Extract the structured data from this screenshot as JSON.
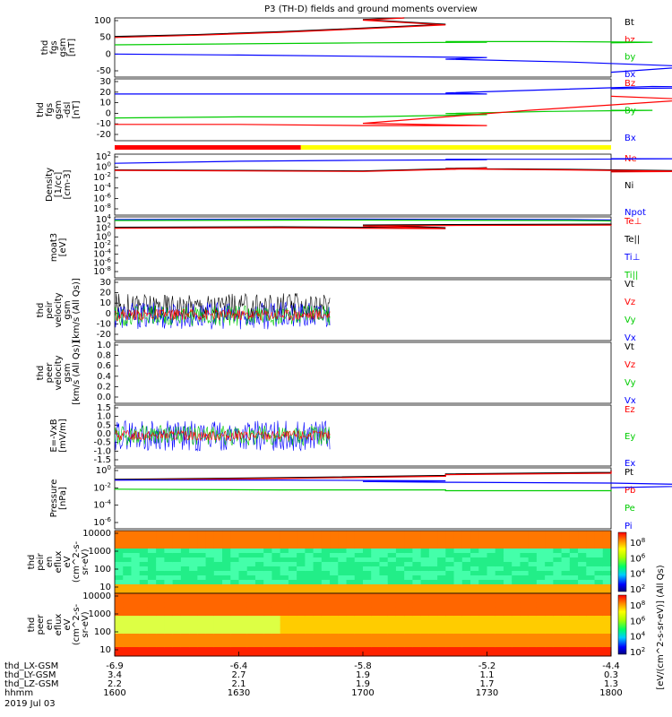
{
  "chart_data": {
    "type": "line",
    "title": "P3 (TH-D) fields and ground moments overview",
    "x_axis": {
      "rows": [
        {
          "label": "thd_LX-GSM",
          "values": [
            "-6.9",
            "-6.4",
            "-5.8",
            "-5.2",
            "-4.4"
          ]
        },
        {
          "label": "thd_LY-GSM",
          "values": [
            "3.4",
            "2.7",
            "1.9",
            "1.1",
            "0.3"
          ]
        },
        {
          "label": "thd_LZ-GSM",
          "values": [
            "2.2",
            "2.1",
            "1.9",
            "1.7",
            "1.3"
          ]
        },
        {
          "label": "hhmm",
          "values": [
            "1600",
            "1630",
            "1700",
            "1730",
            "1800"
          ]
        }
      ],
      "date": "2019 Jul 03",
      "time_range": [
        1600,
        1800
      ]
    },
    "panels": [
      {
        "id": "fgs_gsm",
        "ylabel": [
          "thd",
          "fgs",
          "gsm",
          "[nT]"
        ],
        "yticks": [
          "100",
          "50",
          "0",
          "-50"
        ],
        "ylim": [
          -85,
          100
        ],
        "legend": [
          {
            "name": "Bt",
            "color": "#000000"
          },
          {
            "name": "bz",
            "color": "#ff0000"
          },
          {
            "name": "by",
            "color": "#00cc00"
          },
          {
            "name": "bx",
            "color": "#0000ff"
          }
        ],
        "series": [
          {
            "name": "Bt",
            "x": [
              1600,
              1620,
              1640,
              1660,
              1680,
              1700,
              1710
            ],
            "y": [
              42,
              48,
              57,
              68,
              80,
              95,
              102
            ]
          },
          {
            "name": "bz",
            "x": [
              1600,
              1620,
              1640,
              1660,
              1680,
              1700,
              1710
            ],
            "y": [
              39,
              46,
              55,
              66,
              78,
              93,
              100
            ]
          },
          {
            "name": "by",
            "x": [
              1600,
              1630,
              1660,
              1690,
              1720,
              1745,
              1770,
              1800
            ],
            "y": [
              16,
              19,
              22,
              24,
              26,
              26,
              24,
              22
            ]
          },
          {
            "name": "bx",
            "x": [
              1600,
              1630,
              1660,
              1690,
              1720,
              1750,
              1780,
              1800
            ],
            "y": [
              -13,
              -16,
              -20,
              -24,
              -29,
              -38,
              -52,
              -70
            ]
          }
        ]
      },
      {
        "id": "fgs_gsm_dsl",
        "ylabel": [
          "thd",
          "fgs",
          "gsm",
          "-dsl",
          "[nT]"
        ],
        "yticks": [
          "30",
          "20",
          "10",
          "0",
          "-10",
          "-20"
        ],
        "ylim": [
          -25,
          32
        ],
        "legend": [
          {
            "name": "Bz",
            "color": "#ff0000"
          },
          {
            "name": "By",
            "color": "#00cc00"
          },
          {
            "name": "Bx",
            "color": "#0000ff"
          }
        ],
        "series": [
          {
            "name": "Bx",
            "x": [
              1600,
              1630,
              1660,
              1690,
              1720,
              1745,
              1770,
              1790,
              1800
            ],
            "y": [
              18,
              18,
              18,
              18,
              19,
              22,
              25,
              24,
              23
            ]
          },
          {
            "name": "By",
            "x": [
              1600,
              1630,
              1660,
              1690,
              1720,
              1745,
              1770,
              1800
            ],
            "y": [
              -4,
              -3,
              -3,
              -1,
              0,
              2,
              3,
              3
            ]
          },
          {
            "name": "Bz",
            "x": [
              1600,
              1630,
              1660,
              1690,
              1700,
              1720,
              1740,
              1760,
              1780,
              1800
            ],
            "y": [
              -10,
              -10,
              -11,
              -11,
              -9,
              -3,
              3,
              8,
              13,
              16
            ]
          }
        ]
      },
      {
        "id": "density",
        "ylabel": [
          "Density",
          "[1/cc]",
          "[cm-3]"
        ],
        "yticks": [
          "10^2",
          "10^0",
          "10^-2",
          "10^-4",
          "10^-6",
          "10^-8"
        ],
        "yscale": "log",
        "ylim": [
          -9,
          3
        ],
        "legend": [
          {
            "name": "Ne",
            "color": "#ff0000"
          },
          {
            "name": "Ni",
            "color": "#000000"
          },
          {
            "name": "Npot",
            "color": "#0000ff"
          }
        ],
        "series": [
          {
            "name": "Npot",
            "x": [
              1600,
              1630,
              1660,
              1690,
              1720,
              1750,
              1780,
              1800
            ],
            "y": [
              1.2,
              1.6,
              1.8,
              1.9,
              2.0,
              2.0,
              2.1,
              2.1
            ]
          },
          {
            "name": "Ni",
            "x": [
              1600,
              1630,
              1660,
              1690,
              1720,
              1750,
              1780,
              1800
            ],
            "y": [
              -0.1,
              -0.2,
              -0.3,
              0.3,
              0.2,
              0.0,
              -0.3,
              -0.4
            ]
          },
          {
            "name": "Ne",
            "x": [
              1600,
              1630,
              1660,
              1690,
              1720,
              1750,
              1780,
              1800
            ],
            "y": [
              -0.2,
              -0.3,
              -0.4,
              0.2,
              0.1,
              -0.1,
              -0.4,
              -0.5
            ]
          }
        ]
      },
      {
        "id": "temperature",
        "ylabel": [
          "moat3",
          "[eV]"
        ],
        "yticks": [
          "10^4",
          "10^2",
          "10^0",
          "10^-2",
          "10^-4",
          "10^-6",
          "10^-8"
        ],
        "yscale": "log",
        "ylim": [
          -9,
          4.5
        ],
        "legend": [
          {
            "name": "Te⊥",
            "color": "#ff0000"
          },
          {
            "name": "Te||",
            "color": "#000000"
          },
          {
            "name": "Ti⊥",
            "color": "#0000ff"
          },
          {
            "name": "Ti||",
            "color": "#00cc00"
          }
        ],
        "series": [
          {
            "name": "Ti⊥",
            "x": [
              1600,
              1650,
              1700,
              1750,
              1800
            ],
            "y": [
              3.9,
              4.0,
              4.0,
              3.9,
              3.8
            ]
          },
          {
            "name": "Ti||",
            "x": [
              1600,
              1650,
              1700,
              1750,
              1800
            ],
            "y": [
              3.7,
              3.8,
              3.8,
              3.7,
              3.6
            ]
          },
          {
            "name": "Te||",
            "x": [
              1600,
              1640,
              1680,
              1700,
              1720,
              1760,
              1800
            ],
            "y": [
              2.2,
              2.3,
              2.1,
              2.7,
              2.8,
              2.9,
              3.0
            ]
          },
          {
            "name": "Te⊥",
            "x": [
              1600,
              1640,
              1680,
              1700,
              1720,
              1760,
              1800
            ],
            "y": [
              2.0,
              2.1,
              1.9,
              2.5,
              2.6,
              2.7,
              2.8
            ]
          }
        ]
      },
      {
        "id": "peir_velocity",
        "ylabel": [
          "thd",
          "peir",
          "velocity",
          "gsm",
          "[km/s (All Qs)]"
        ],
        "yticks": [
          "30",
          "20",
          "10",
          "0",
          "-10",
          "-20"
        ],
        "ylim": [
          -22,
          32
        ],
        "legend": [
          {
            "name": "Vt",
            "color": "#000000"
          },
          {
            "name": "Vz",
            "color": "#ff0000"
          },
          {
            "name": "Vy",
            "color": "#00cc00"
          },
          {
            "name": "Vx",
            "color": "#0000ff"
          }
        ],
        "series": [
          {
            "name": "Vt",
            "x_range": [
              1600,
              1652
            ],
            "y_mean": 8,
            "y_spread": 12
          },
          {
            "name": "Vx",
            "x_range": [
              1600,
              1652
            ],
            "y_mean": 0,
            "y_spread": 12
          },
          {
            "name": "Vy",
            "x_range": [
              1600,
              1652
            ],
            "y_mean": 0,
            "y_spread": 9
          },
          {
            "name": "Vz",
            "x_range": [
              1600,
              1652
            ],
            "y_mean": 1,
            "y_spread": 5
          }
        ]
      },
      {
        "id": "peer_velocity",
        "ylabel": [
          "thd",
          "peer",
          "velocity",
          "gsm",
          "[km/s (All Qs)]"
        ],
        "yticks": [
          "1.0",
          "0.8",
          "0.6",
          "0.4",
          "0.2",
          "0.0"
        ],
        "ylim": [
          0,
          1
        ],
        "legend": [
          {
            "name": "Vt",
            "color": "#000000"
          },
          {
            "name": "Vz",
            "color": "#ff0000"
          },
          {
            "name": "Vy",
            "color": "#00cc00"
          },
          {
            "name": "Vx",
            "color": "#0000ff"
          }
        ],
        "series": []
      },
      {
        "id": "electric_field",
        "ylabel": [
          "E=-VxB",
          "[mV/m]"
        ],
        "yticks": [
          "1.5",
          "1.0",
          "0.5",
          "0.0",
          "-0.5",
          "-1.0",
          "-1.5"
        ],
        "ylim": [
          -1.8,
          1.8
        ],
        "legend": [
          {
            "name": "Ez",
            "color": "#ff0000"
          },
          {
            "name": "Ey",
            "color": "#00cc00"
          },
          {
            "name": "Ex",
            "color": "#0000ff"
          }
        ],
        "series": [
          {
            "name": "Ex",
            "x_range": [
              1600,
              1652
            ],
            "y_mean": 0,
            "y_spread": 0.9
          },
          {
            "name": "Ey",
            "x_range": [
              1600,
              1652
            ],
            "y_mean": 0,
            "y_spread": 0.6
          },
          {
            "name": "Ez",
            "x_range": [
              1600,
              1652
            ],
            "y_mean": 0,
            "y_spread": 0.3
          }
        ]
      },
      {
        "id": "pressure",
        "ylabel": [
          "Pressure",
          "[nPa]"
        ],
        "yticks": [
          "10^0",
          "10^-2",
          "10^-4",
          "10^-6"
        ],
        "yscale": "log",
        "ylim": [
          -7,
          1
        ],
        "legend": [
          {
            "name": "Pt",
            "color": "#000000"
          },
          {
            "name": "Pb",
            "color": "#ff0000"
          },
          {
            "name": "Pe",
            "color": "#00cc00"
          },
          {
            "name": "Pi",
            "color": "#0000ff"
          }
        ],
        "series": [
          {
            "name": "Pt",
            "x": [
              1600,
              1640,
              1680,
              1720,
              1760,
              1800
            ],
            "y": [
              -0.5,
              -0.3,
              0.0,
              0.2,
              0.4,
              0.7
            ]
          },
          {
            "name": "Pb",
            "x": [
              1600,
              1640,
              1680,
              1720,
              1760,
              1800
            ],
            "y": [
              -0.6,
              -0.4,
              -0.1,
              0.1,
              0.3,
              0.6
            ]
          },
          {
            "name": "Pe",
            "x": [
              1600,
              1640,
              1680,
              1720,
              1760,
              1800
            ],
            "y": [
              -1.8,
              -1.9,
              -1.9,
              -2.0,
              -2.0,
              -2.1
            ]
          },
          {
            "name": "Pi",
            "x": [
              1600,
              1640,
              1680,
              1700,
              1720,
              1760,
              1790,
              1800
            ],
            "y": [
              -0.6,
              -0.6,
              -0.7,
              -0.8,
              -0.9,
              -1.0,
              -1.3,
              -1.6
            ]
          }
        ]
      },
      {
        "id": "peir_spectrogram",
        "type": "heatmap",
        "ylabel": [
          "thd",
          "peir",
          "en",
          "eflux",
          "eV",
          "(cm^2-s-",
          "sr-eV)"
        ],
        "yticks": [
          "10000",
          "1000",
          "100",
          "10"
        ],
        "yscale": "log",
        "ylim": [
          5,
          25000
        ]
      },
      {
        "id": "peer_spectrogram",
        "type": "heatmap",
        "ylabel": [
          "thd",
          "peer",
          "en",
          "eflux",
          "eV",
          "(cm^2-s-",
          "sr-eV)"
        ],
        "yticks": [
          "10000",
          "1000",
          "100",
          "10"
        ],
        "yscale": "log",
        "ylim": [
          5,
          25000
        ]
      }
    ],
    "colorbar": {
      "label": "[eV/(cm^2-s-sr-eV)] (All Qs)",
      "ticks": [
        "10^8",
        "10^6",
        "10^4",
        "10^2"
      ]
    },
    "mode_bar": {
      "segments": [
        {
          "from": 1600,
          "to": 1645,
          "color": "#ff0000"
        },
        {
          "from": 1645,
          "to": 1800,
          "color": "#ffff00"
        }
      ]
    }
  }
}
